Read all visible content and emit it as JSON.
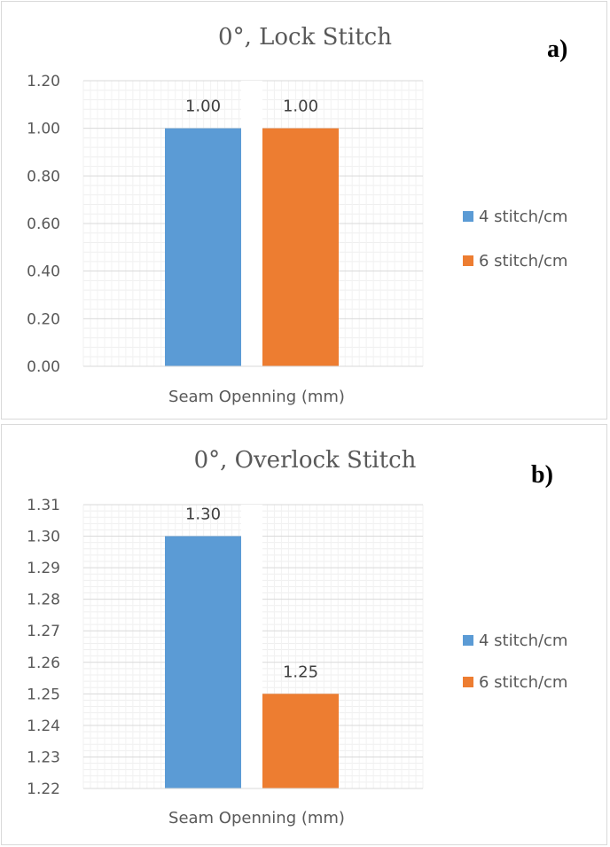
{
  "chart_data": [
    {
      "type": "bar",
      "title": "0°, Lock Stitch",
      "panel_label": "a)",
      "categories": [
        "Seam Openning (mm)"
      ],
      "series": [
        {
          "name": "4 stitch/cm",
          "values": [
            1.0
          ],
          "label": "1.00",
          "color": "#5b9bd5"
        },
        {
          "name": "6 stitch/cm",
          "values": [
            1.0
          ],
          "label": "1.00",
          "color": "#ed7d31"
        }
      ],
      "ylim": [
        0,
        1.2
      ],
      "yticks": [
        "0.00",
        "0.20",
        "0.40",
        "0.60",
        "0.80",
        "1.00",
        "1.20"
      ],
      "ytick_values": [
        0,
        0.2,
        0.4,
        0.6,
        0.8,
        1.0,
        1.2
      ],
      "grid": true,
      "legend": "right"
    },
    {
      "type": "bar",
      "title": "0°, Overlock Stitch",
      "panel_label": "b)",
      "categories": [
        "Seam Openning (mm)"
      ],
      "series": [
        {
          "name": "4 stitch/cm",
          "values": [
            1.3
          ],
          "label": "1.30",
          "color": "#5b9bd5"
        },
        {
          "name": "6 stitch/cm",
          "values": [
            1.25
          ],
          "label": "1.25",
          "color": "#ed7d31"
        }
      ],
      "ylim": [
        1.22,
        1.31
      ],
      "yticks": [
        "1.22",
        "1.23",
        "1.24",
        "1.25",
        "1.26",
        "1.27",
        "1.28",
        "1.29",
        "1.30",
        "1.31"
      ],
      "ytick_values": [
        1.22,
        1.23,
        1.24,
        1.25,
        1.26,
        1.27,
        1.28,
        1.29,
        1.3,
        1.31
      ],
      "grid": true,
      "legend": "right"
    }
  ]
}
